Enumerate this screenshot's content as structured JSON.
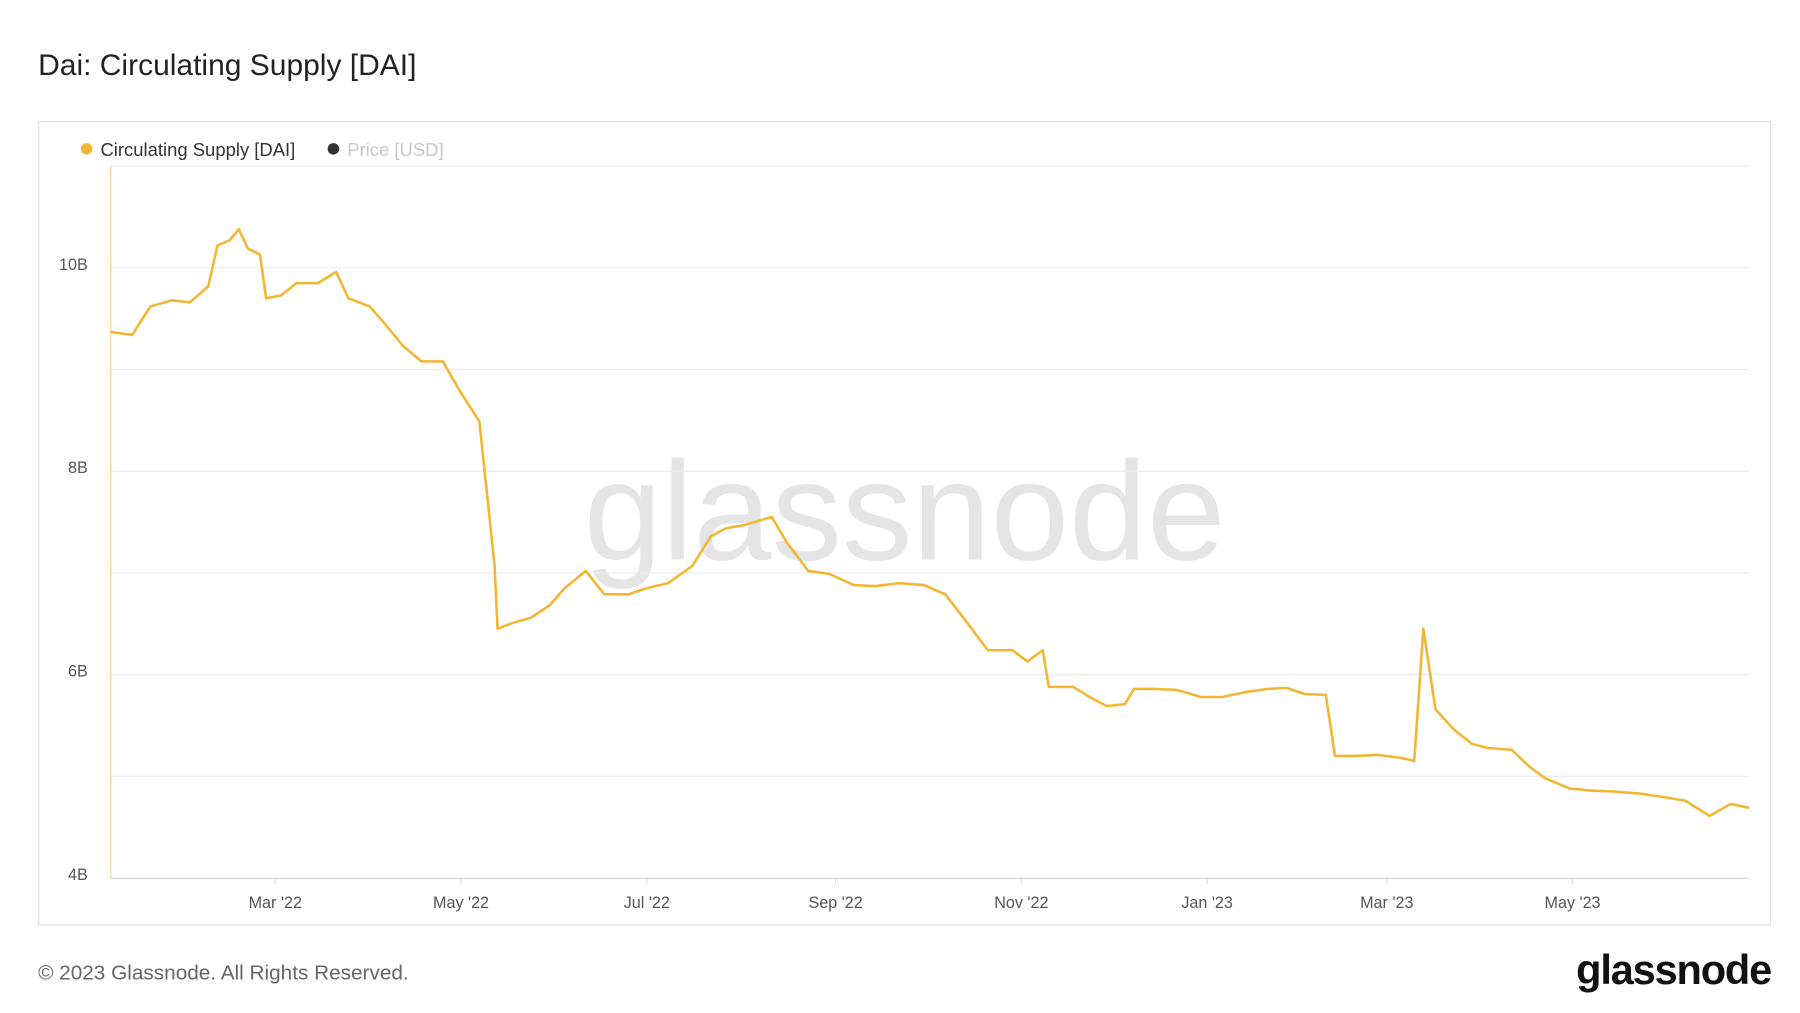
{
  "chart_data": {
    "type": "line",
    "title": "Dai: Circulating Supply [DAI]",
    "x": [
      "2022-01-06",
      "2022-01-13",
      "2022-01-19",
      "2022-01-26",
      "2022-02-01",
      "2022-02-07",
      "2022-02-10",
      "2022-02-14",
      "2022-02-17",
      "2022-02-20",
      "2022-02-24",
      "2022-02-26",
      "2022-03-03",
      "2022-03-08",
      "2022-03-15",
      "2022-03-21",
      "2022-03-25",
      "2022-04-01",
      "2022-04-06",
      "2022-04-12",
      "2022-04-18",
      "2022-04-25",
      "2022-05-01",
      "2022-05-07",
      "2022-05-12",
      "2022-05-13",
      "2022-05-18",
      "2022-05-24",
      "2022-05-30",
      "2022-06-04",
      "2022-06-11",
      "2022-06-17",
      "2022-06-25",
      "2022-07-01",
      "2022-07-08",
      "2022-07-16",
      "2022-07-22",
      "2022-07-27",
      "2022-08-02",
      "2022-08-11",
      "2022-08-16",
      "2022-08-23",
      "2022-08-30",
      "2022-09-07",
      "2022-09-14",
      "2022-09-22",
      "2022-09-30",
      "2022-10-07",
      "2022-10-15",
      "2022-10-21",
      "2022-10-29",
      "2022-11-03",
      "2022-11-08",
      "2022-11-10",
      "2022-11-18",
      "2022-11-24",
      "2022-11-29",
      "2022-12-05",
      "2022-12-08",
      "2022-12-14",
      "2022-12-22",
      "2022-12-30",
      "2023-01-06",
      "2023-01-14",
      "2023-01-21",
      "2023-01-27",
      "2023-02-02",
      "2023-02-09",
      "2023-02-12",
      "2023-02-19",
      "2023-02-26",
      "2023-03-06",
      "2023-03-10",
      "2023-03-13",
      "2023-03-17",
      "2023-03-23",
      "2023-03-29",
      "2023-04-03",
      "2023-04-11",
      "2023-04-17",
      "2023-04-22",
      "2023-04-30",
      "2023-05-07",
      "2023-05-15",
      "2023-05-23",
      "2023-05-30",
      "2023-06-07",
      "2023-06-15",
      "2023-06-22",
      "2023-06-28"
    ],
    "series": [
      {
        "name": "Circulating Supply [DAI]",
        "color": "#f2b630",
        "values": [
          9370000000,
          9340000000,
          9620000000,
          9680000000,
          9660000000,
          9820000000,
          10220000000,
          10270000000,
          10380000000,
          10190000000,
          10130000000,
          9700000000,
          9730000000,
          9850000000,
          9850000000,
          9960000000,
          9700000000,
          9620000000,
          9450000000,
          9230000000,
          9080000000,
          9080000000,
          8770000000,
          8490000000,
          7070000000,
          6450000000,
          6510000000,
          6560000000,
          6680000000,
          6850000000,
          7020000000,
          6790000000,
          6790000000,
          6850000000,
          6900000000,
          7070000000,
          7360000000,
          7440000000,
          7470000000,
          7550000000,
          7300000000,
          7020000000,
          6990000000,
          6880000000,
          6870000000,
          6900000000,
          6880000000,
          6790000000,
          6480000000,
          6240000000,
          6240000000,
          6130000000,
          6240000000,
          5880000000,
          5880000000,
          5770000000,
          5690000000,
          5710000000,
          5860000000,
          5860000000,
          5850000000,
          5780000000,
          5780000000,
          5830000000,
          5860000000,
          5870000000,
          5810000000,
          5800000000,
          5200000000,
          5200000000,
          5210000000,
          5180000000,
          5150000000,
          6450000000,
          5660000000,
          5460000000,
          5320000000,
          5280000000,
          5260000000,
          5090000000,
          4980000000,
          4880000000,
          4860000000,
          4850000000,
          4830000000,
          4800000000,
          4760000000,
          4610000000,
          4730000000,
          4690000000
        ]
      },
      {
        "name": "Price [USD]",
        "color": "#333333",
        "visible": false
      }
    ],
    "xlim": [
      "2022-01-06",
      "2023-06-28"
    ],
    "xticks": [
      {
        "value": "2022-03-01",
        "label": "Mar '22"
      },
      {
        "value": "2022-05-01",
        "label": "May '22"
      },
      {
        "value": "2022-07-01",
        "label": "Jul '22"
      },
      {
        "value": "2022-09-01",
        "label": "Sep '22"
      },
      {
        "value": "2022-11-01",
        "label": "Nov '22"
      },
      {
        "value": "2023-01-01",
        "label": "Jan '23"
      },
      {
        "value": "2023-03-01",
        "label": "Mar '23"
      },
      {
        "value": "2023-05-01",
        "label": "May '23"
      }
    ],
    "ylim": [
      4000000000,
      11000000000
    ],
    "yticks": [
      {
        "value": 4000000000,
        "label": "4B"
      },
      {
        "value": 6000000000,
        "label": "6B"
      },
      {
        "value": 8000000000,
        "label": "8B"
      },
      {
        "value": 10000000000,
        "label": "10B"
      }
    ],
    "minor_yticks": [
      5000000000,
      7000000000,
      9000000000,
      11000000000
    ],
    "grid": true,
    "legend": "top-left",
    "watermark": "glassnode",
    "footer": "© 2023 Glassnode. All Rights Reserved.",
    "logo": "glassnode"
  }
}
